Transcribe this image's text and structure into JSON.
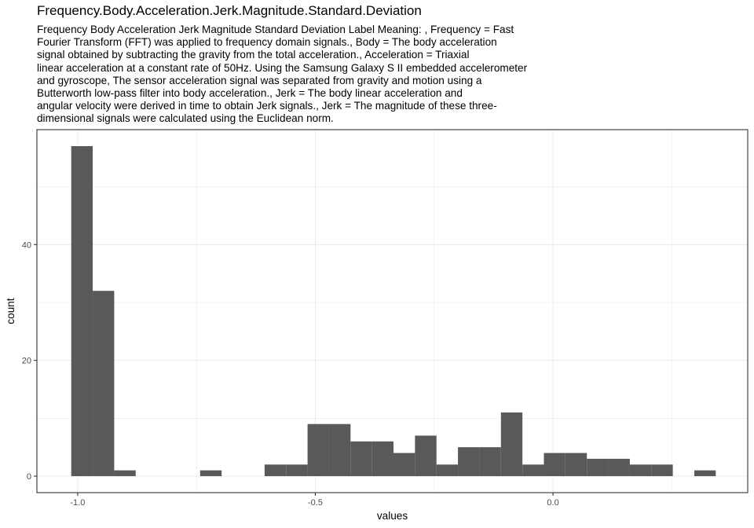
{
  "chart_data": {
    "type": "bar",
    "title": "Frequency.Body.Acceleration.Jerk.Magnitude.Standard.Deviation",
    "subtitle_lines": [
      "Frequency Body Acceleration Jerk Magnitude Standard Deviation Label Meaning: , Frequency = Fast",
      "Fourier Transform (FFT) was applied to frequency domain signals., Body = The body acceleration",
      "signal obtained by subtracting the gravity from the total acceleration., Acceleration = Triaxial",
      "linear acceleration at a constant rate of 50Hz. Using the Samsung Galaxy S II embedded accelerometer",
      "and gyroscope, The sensor acceleration signal was separated from gravity and motion using a",
      "Butterworth low-pass filter into body acceleration., Jerk = The body linear acceleration and",
      "angular velocity were derived in time to obtain Jerk signals., Jerk = The magnitude of these three-",
      "dimensional signals were calculated using the Euclidean norm."
    ],
    "xlabel": "values",
    "ylabel": "count",
    "xlim": [
      -1.0857,
      0.4097
    ],
    "ylim": [
      -2.85,
      59.85
    ],
    "x_ticks": [
      {
        "value": -1.0,
        "label": "-1.0"
      },
      {
        "value": -0.5,
        "label": "-0.5"
      },
      {
        "value": 0.0,
        "label": "0.0"
      }
    ],
    "y_ticks": [
      {
        "value": 0,
        "label": "0"
      },
      {
        "value": 20,
        "label": "20"
      },
      {
        "value": 40,
        "label": "40"
      }
    ],
    "bin_width": 0.0452,
    "bins": [
      {
        "x0": -1.0135,
        "count": 57
      },
      {
        "x0": -0.9683,
        "count": 32
      },
      {
        "x0": -0.9231,
        "count": 1
      },
      {
        "x0": -0.8779,
        "count": 0
      },
      {
        "x0": -0.8327,
        "count": 0
      },
      {
        "x0": -0.7875,
        "count": 0
      },
      {
        "x0": -0.7423,
        "count": 1
      },
      {
        "x0": -0.6971,
        "count": 0
      },
      {
        "x0": -0.6519,
        "count": 0
      },
      {
        "x0": -0.6067,
        "count": 2
      },
      {
        "x0": -0.5615,
        "count": 2
      },
      {
        "x0": -0.5163,
        "count": 9
      },
      {
        "x0": -0.4711,
        "count": 9
      },
      {
        "x0": -0.4259,
        "count": 6
      },
      {
        "x0": -0.3807,
        "count": 6
      },
      {
        "x0": -0.3355,
        "count": 4
      },
      {
        "x0": -0.2903,
        "count": 7
      },
      {
        "x0": -0.2451,
        "count": 2
      },
      {
        "x0": -0.1999,
        "count": 5
      },
      {
        "x0": -0.1547,
        "count": 5
      },
      {
        "x0": -0.1095,
        "count": 11
      },
      {
        "x0": -0.0643,
        "count": 2
      },
      {
        "x0": -0.0191,
        "count": 4
      },
      {
        "x0": 0.0261,
        "count": 4
      },
      {
        "x0": 0.0713,
        "count": 3
      },
      {
        "x0": 0.1165,
        "count": 3
      },
      {
        "x0": 0.1617,
        "count": 2
      },
      {
        "x0": 0.2069,
        "count": 2
      },
      {
        "x0": 0.2521,
        "count": 0
      },
      {
        "x0": 0.2973,
        "count": 1
      }
    ],
    "bar_color": "#595959",
    "grid": true,
    "grid_color": "#ebebeb",
    "panel_border_color": "#333333",
    "theme": "bw"
  }
}
